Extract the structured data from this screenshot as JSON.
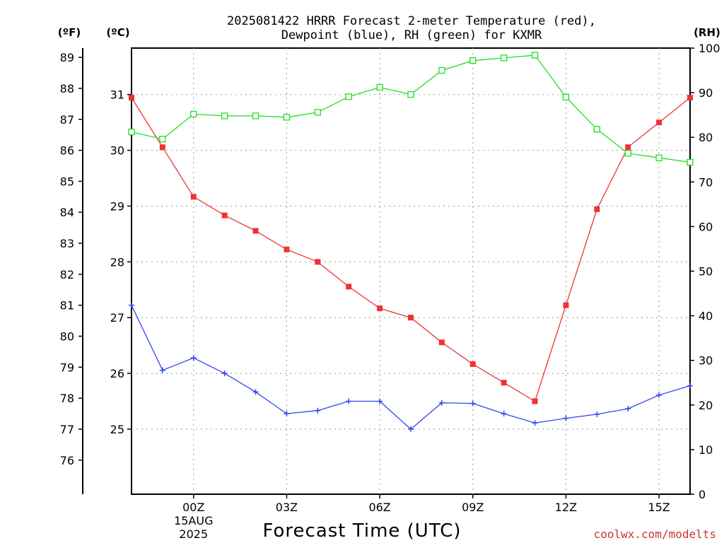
{
  "chart_data": {
    "type": "line",
    "title_lines": [
      "2025081422 HRRR Forecast 2-meter Temperature (red),",
      "Dewpoint (blue), RH (green) for KXMR"
    ],
    "xlabel": "Forecast Time (UTC)",
    "credit": "coolwx.com/modelts",
    "unit_labels": {
      "f": "(ºF)",
      "c": "(ºC)",
      "rh": "(RH)"
    },
    "x_hours": [
      22,
      23,
      24,
      25,
      26,
      27,
      28,
      29,
      30,
      31,
      32,
      33,
      34,
      35,
      36,
      37,
      38,
      39,
      40
    ],
    "x_ticks": [
      {
        "hour": 24,
        "label": "00Z",
        "date_lines": [
          "15AUG",
          "2025"
        ]
      },
      {
        "hour": 27,
        "label": "03Z"
      },
      {
        "hour": 30,
        "label": "06Z"
      },
      {
        "hour": 33,
        "label": "09Z"
      },
      {
        "hour": 36,
        "label": "12Z"
      },
      {
        "hour": 39,
        "label": "15Z"
      }
    ],
    "xlim": [
      22,
      40
    ],
    "f_ticks": [
      76,
      77,
      78,
      79,
      80,
      81,
      82,
      83,
      84,
      85,
      86,
      87,
      88,
      89
    ],
    "c_ticks": [
      25,
      26,
      27,
      28,
      29,
      30,
      31
    ],
    "rh_ticks": [
      0,
      10,
      20,
      30,
      40,
      50,
      60,
      70,
      80,
      90,
      100
    ],
    "rh_ylim": [
      0,
      100
    ],
    "f_ylim": [
      74.9,
      89.3
    ],
    "grid": true,
    "series": [
      {
        "key": "temperature",
        "axis": "F",
        "color": "#ee3333",
        "marker": "filled-square",
        "values": [
          87.7,
          86.1,
          84.5,
          83.9,
          83.4,
          82.8,
          82.4,
          81.6,
          80.9,
          80.6,
          79.8,
          79.1,
          78.5,
          77.9,
          81.0,
          84.1,
          86.1,
          86.9,
          87.7
        ]
      },
      {
        "key": "dewpoint",
        "axis": "F",
        "color": "#3344ee",
        "marker": "plus",
        "values": [
          81.0,
          78.9,
          79.3,
          78.8,
          78.2,
          77.5,
          77.6,
          77.9,
          77.9,
          77.0,
          77.85,
          77.83,
          77.5,
          77.2,
          77.35,
          77.48,
          77.66,
          78.1,
          78.4
        ]
      },
      {
        "key": "rh",
        "axis": "RH",
        "color": "#22dd22",
        "marker": "open-square",
        "values": [
          81.2,
          79.6,
          85.2,
          84.8,
          84.8,
          84.5,
          85.6,
          89.1,
          91.2,
          89.6,
          95.0,
          97.2,
          97.8,
          98.4,
          89.0,
          81.8,
          76.4,
          75.4,
          74.4
        ]
      }
    ]
  }
}
